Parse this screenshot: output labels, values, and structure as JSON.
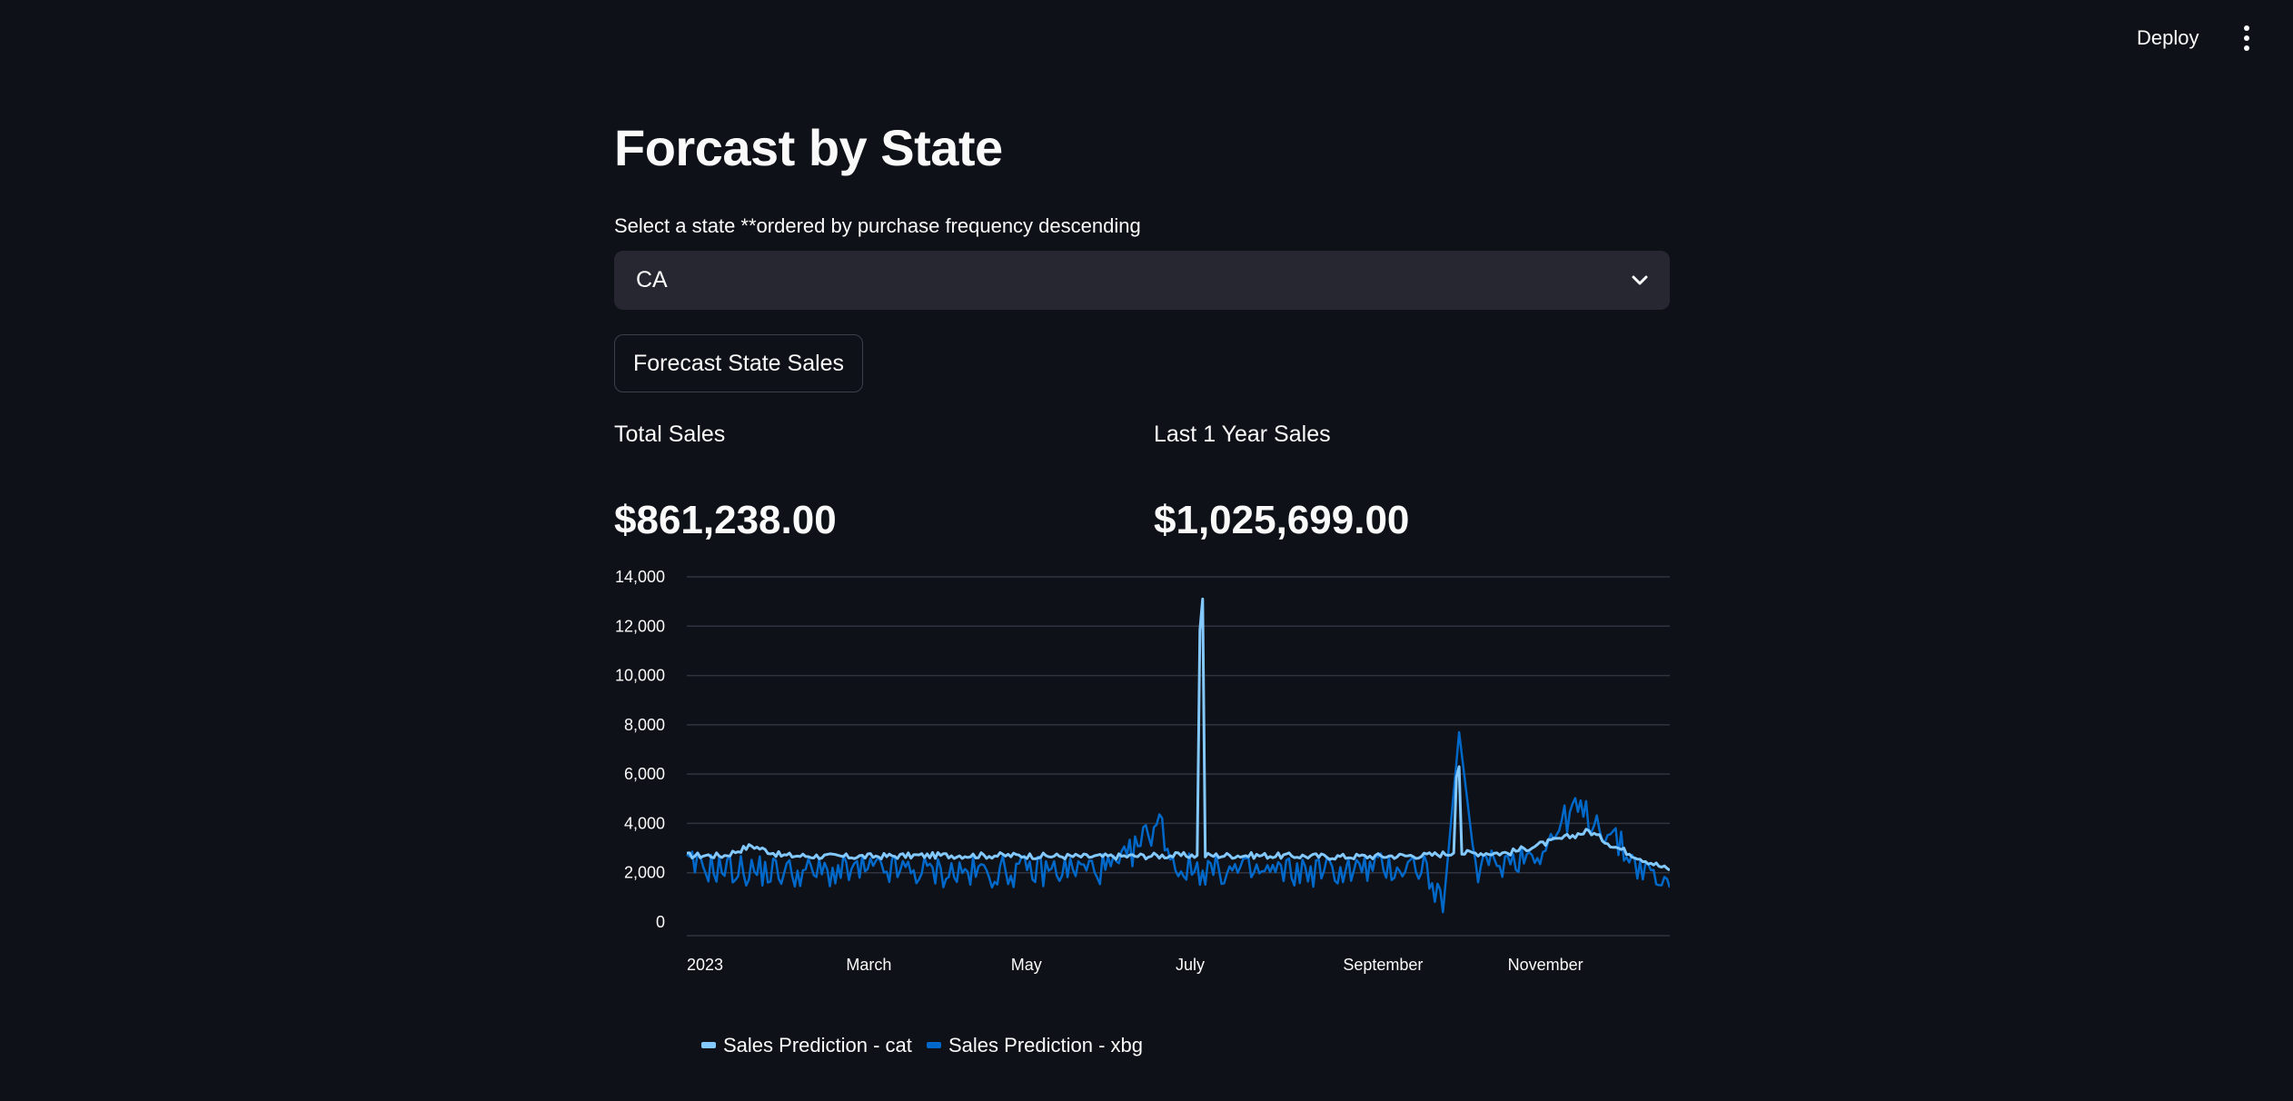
{
  "header": {
    "deploy_label": "Deploy",
    "menu_icon": "kebab-vertical-icon"
  },
  "page": {
    "title": "Forcast by State"
  },
  "state_select": {
    "label": "Select a state **ordered by purchase frequency descending",
    "value": "CA",
    "icon": "chevron-down-icon"
  },
  "forecast_button": {
    "label": "Forecast State Sales"
  },
  "metrics": {
    "total": {
      "label": "Total Sales",
      "value": "$861,238.00"
    },
    "last_year": {
      "label": "Last 1 Year Sales",
      "value": "$1,025,699.00"
    }
  },
  "colors": {
    "background": "#0e1117",
    "input_bg": "#262730",
    "series_cat": "#83c9ff",
    "series_xbg": "#0068c9",
    "grid": "#31333f"
  },
  "chart_data": {
    "type": "line",
    "x_ticks": [
      "2023",
      "March",
      "May",
      "July",
      "September",
      "November"
    ],
    "y_ticks": [
      "0",
      "2,000",
      "4,000",
      "6,000",
      "8,000",
      "10,000",
      "12,000",
      "14,000"
    ],
    "ylim": [
      0,
      14000
    ],
    "xlim": [
      "2023-01-01",
      "2023-12-31"
    ],
    "grid": true,
    "legend_position": "bottom-left",
    "series": [
      {
        "name": "Sales Prediction - cat",
        "color": "#83c9ff",
        "points": [
          [
            "2023-01-01",
            2700
          ],
          [
            "2023-01-15",
            2700
          ],
          [
            "2023-01-25",
            3100
          ],
          [
            "2023-02-05",
            2700
          ],
          [
            "2023-03-01",
            2650
          ],
          [
            "2023-04-01",
            2700
          ],
          [
            "2023-05-01",
            2700
          ],
          [
            "2023-06-01",
            2650
          ],
          [
            "2023-07-01",
            2700
          ],
          [
            "2023-07-09",
            2700
          ],
          [
            "2023-07-10",
            11800
          ],
          [
            "2023-07-11",
            13100
          ],
          [
            "2023-07-12",
            2700
          ],
          [
            "2023-08-01",
            2700
          ],
          [
            "2023-09-01",
            2650
          ],
          [
            "2023-10-01",
            2700
          ],
          [
            "2023-10-12",
            2800
          ],
          [
            "2023-10-13",
            6000
          ],
          [
            "2023-10-14",
            6300
          ],
          [
            "2023-10-15",
            2800
          ],
          [
            "2023-11-01",
            2800
          ],
          [
            "2023-11-15",
            3200
          ],
          [
            "2023-11-25",
            3500
          ],
          [
            "2023-12-01",
            3700
          ],
          [
            "2023-12-10",
            3100
          ],
          [
            "2023-12-20",
            2600
          ],
          [
            "2023-12-31",
            2100
          ]
        ]
      },
      {
        "name": "Sales Prediction - xbg",
        "color": "#0068c9",
        "points": [
          [
            "2023-01-01",
            2300
          ],
          [
            "2023-01-20",
            2100
          ],
          [
            "2023-02-15",
            2000
          ],
          [
            "2023-03-15",
            2100
          ],
          [
            "2023-04-15",
            2000
          ],
          [
            "2023-05-15",
            2100
          ],
          [
            "2023-06-10",
            2200
          ],
          [
            "2023-06-25",
            4100
          ],
          [
            "2023-07-01",
            2200
          ],
          [
            "2023-08-01",
            2000
          ],
          [
            "2023-09-01",
            2100
          ],
          [
            "2023-10-01",
            2300
          ],
          [
            "2023-10-08",
            400
          ],
          [
            "2023-10-14",
            7700
          ],
          [
            "2023-10-20",
            2200
          ],
          [
            "2023-11-01",
            2500
          ],
          [
            "2023-11-15",
            3000
          ],
          [
            "2023-11-25",
            4600
          ],
          [
            "2023-12-05",
            4000
          ],
          [
            "2023-12-20",
            2200
          ],
          [
            "2023-12-31",
            1400
          ]
        ]
      }
    ]
  }
}
